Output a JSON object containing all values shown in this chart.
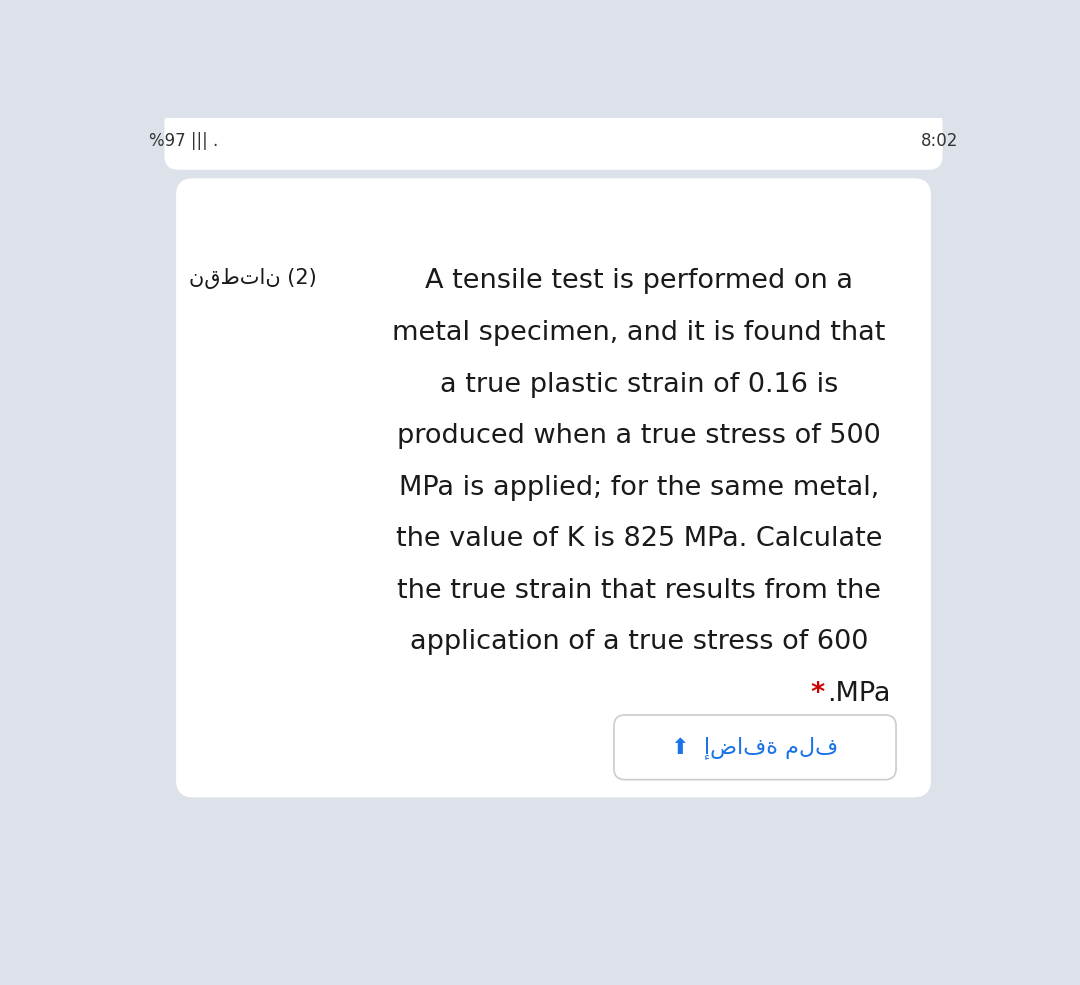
{
  "bg_color": "#dde1ea",
  "top_card_bg": "#ffffff",
  "card_bg": "#ffffff",
  "status_bar_left": "%97 ||| .  ",
  "status_bar_right": "8:02",
  "points_label": "نقطتان (2)",
  "main_text_lines": [
    "A tensile test is performed on a",
    "metal specimen, and it is found that",
    "a true plastic strain of 0.16 is",
    "produced when a true stress of 500",
    "MPa is applied; for the same metal,",
    "the value of K is 825 MPa. Calculate",
    "the true strain that results from the",
    "application of a true stress of 600"
  ],
  "last_line_star": "*",
  "last_line_text": ".MPa",
  "last_line_star_color": "#cc0000",
  "add_file_btn_text": "إضافة ملف",
  "add_file_btn_color": "#1a73e8",
  "main_text_color": "#1a1a1a",
  "main_text_fontsize": 19.5,
  "points_fontsize": 15,
  "status_fontsize": 12
}
